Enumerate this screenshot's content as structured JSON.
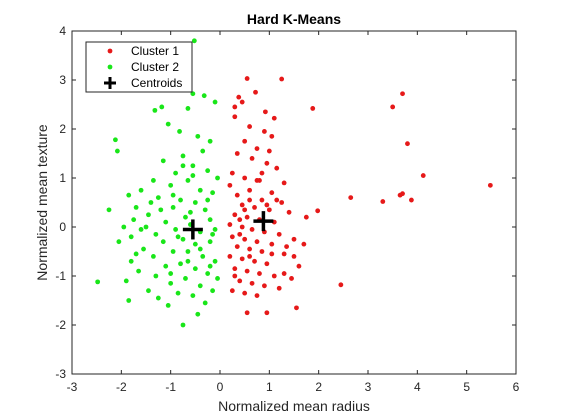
{
  "chart_data": {
    "type": "scatter",
    "title": "Hard K-Means",
    "xlabel": "Normalized mean radius",
    "ylabel": "Normalized mean texture",
    "xlim": [
      -3,
      6
    ],
    "ylim": [
      -3,
      4
    ],
    "xticks": [
      "-3",
      "-2",
      "-1",
      "0",
      "1",
      "2",
      "3",
      "4",
      "5",
      "6"
    ],
    "yticks": [
      "-3",
      "-2",
      "-1",
      "0",
      "1",
      "2",
      "3",
      "4"
    ],
    "grid": false,
    "legend_position": "top-left",
    "series": [
      {
        "name": "Cluster 1",
        "color": "#e61919",
        "marker": "dot",
        "points": [
          [
            0.38,
            2.65
          ],
          [
            0.55,
            3.03
          ],
          [
            1.25,
            3.02
          ],
          [
            0.72,
            2.75
          ],
          [
            0.45,
            2.55
          ],
          [
            0.92,
            2.35
          ],
          [
            1.1,
            2.22
          ],
          [
            1.88,
            2.42
          ],
          [
            0.3,
            2.25
          ],
          [
            0.6,
            2.05
          ],
          [
            0.9,
            1.95
          ],
          [
            1.05,
            1.85
          ],
          [
            0.5,
            1.75
          ],
          [
            0.75,
            1.6
          ],
          [
            0.35,
            1.5
          ],
          [
            0.65,
            1.4
          ],
          [
            0.95,
            1.3
          ],
          [
            1.15,
            1.2
          ],
          [
            0.25,
            1.1
          ],
          [
            0.5,
            1.0
          ],
          [
            0.8,
            0.95
          ],
          [
            1.3,
            0.9
          ],
          [
            0.2,
            0.85
          ],
          [
            0.6,
            0.75
          ],
          [
            1.05,
            0.7
          ],
          [
            0.35,
            0.65
          ],
          [
            0.85,
            0.55
          ],
          [
            1.25,
            0.5
          ],
          [
            0.45,
            0.45
          ],
          [
            0.7,
            0.4
          ],
          [
            1.0,
            0.35
          ],
          [
            1.4,
            0.3
          ],
          [
            1.75,
            0.2
          ],
          [
            1.98,
            0.33
          ],
          [
            0.3,
            0.25
          ],
          [
            0.55,
            0.2
          ],
          [
            0.8,
            0.15
          ],
          [
            1.1,
            0.1
          ],
          [
            0.2,
            0.05
          ],
          [
            0.45,
            0.0
          ],
          [
            0.65,
            -0.05
          ],
          [
            0.9,
            -0.1
          ],
          [
            1.2,
            -0.15
          ],
          [
            1.5,
            -0.25
          ],
          [
            0.25,
            -0.2
          ],
          [
            0.5,
            -0.25
          ],
          [
            0.75,
            -0.3
          ],
          [
            1.05,
            -0.35
          ],
          [
            0.35,
            -0.4
          ],
          [
            0.6,
            -0.45
          ],
          [
            0.85,
            -0.5
          ],
          [
            1.3,
            -0.55
          ],
          [
            0.2,
            -0.6
          ],
          [
            0.45,
            -0.65
          ],
          [
            0.7,
            -0.7
          ],
          [
            0.95,
            -0.75
          ],
          [
            1.6,
            -0.8
          ],
          [
            0.3,
            -0.85
          ],
          [
            0.55,
            -0.9
          ],
          [
            0.8,
            -0.95
          ],
          [
            1.1,
            -1.0
          ],
          [
            1.45,
            -1.05
          ],
          [
            0.4,
            -1.1
          ],
          [
            0.65,
            -1.15
          ],
          [
            0.9,
            -1.2
          ],
          [
            1.2,
            -1.25
          ],
          [
            0.25,
            -1.3
          ],
          [
            0.5,
            -1.35
          ],
          [
            0.75,
            -1.4
          ],
          [
            1.55,
            -1.65
          ],
          [
            2.45,
            -1.18
          ],
          [
            0.55,
            -1.75
          ],
          [
            0.95,
            -1.75
          ],
          [
            1.5,
            -0.6
          ],
          [
            1.3,
            -0.95
          ],
          [
            0.4,
            0.15
          ],
          [
            0.6,
            0.55
          ],
          [
            1.35,
            -0.4
          ],
          [
            0.75,
            0.95
          ],
          [
            0.4,
            -0.15
          ],
          [
            1.15,
            0.55
          ],
          [
            0.3,
            -1.0
          ],
          [
            1.7,
            -0.35
          ],
          [
            0.85,
            1.1
          ],
          [
            2.65,
            0.6
          ],
          [
            3.3,
            0.52
          ],
          [
            3.65,
            0.65
          ],
          [
            3.7,
            0.68
          ],
          [
            4.12,
            1.05
          ],
          [
            3.8,
            1.7
          ],
          [
            3.5,
            2.45
          ],
          [
            3.7,
            2.72
          ],
          [
            3.88,
            0.55
          ],
          [
            5.48,
            0.85
          ],
          [
            0.3,
            2.45
          ],
          [
            1.0,
            1.55
          ],
          [
            0.6,
            -0.6
          ],
          [
            0.95,
            0.45
          ],
          [
            0.5,
            0.35
          ],
          [
            1.05,
            -0.55
          ]
        ]
      },
      {
        "name": "Cluster 2",
        "color": "#19e619",
        "marker": "dot",
        "points": [
          [
            -0.52,
            3.8
          ],
          [
            -0.55,
            2.72
          ],
          [
            -0.32,
            2.68
          ],
          [
            -1.18,
            2.45
          ],
          [
            -1.32,
            2.38
          ],
          [
            -0.65,
            2.42
          ],
          [
            -0.1,
            2.55
          ],
          [
            -2.12,
            1.78
          ],
          [
            -2.08,
            1.55
          ],
          [
            -1.05,
            2.1
          ],
          [
            -0.82,
            1.95
          ],
          [
            -0.45,
            1.85
          ],
          [
            -0.2,
            1.75
          ],
          [
            -0.35,
            1.55
          ],
          [
            -0.75,
            1.45
          ],
          [
            -1.15,
            1.35
          ],
          [
            -0.55,
            1.25
          ],
          [
            -0.25,
            1.15
          ],
          [
            -0.9,
            1.1
          ],
          [
            -1.35,
            0.95
          ],
          [
            -0.65,
            0.95
          ],
          [
            -0.05,
            1.0
          ],
          [
            -1.85,
            0.65
          ],
          [
            -1.6,
            0.75
          ],
          [
            -1.0,
            0.85
          ],
          [
            -0.4,
            0.75
          ],
          [
            -0.15,
            0.7
          ],
          [
            -1.25,
            0.6
          ],
          [
            -0.8,
            0.55
          ],
          [
            -2.25,
            0.35
          ],
          [
            -1.7,
            0.4
          ],
          [
            -0.5,
            0.5
          ],
          [
            -0.95,
            0.4
          ],
          [
            -0.3,
            0.35
          ],
          [
            -1.45,
            0.25
          ],
          [
            -1.75,
            0.15
          ],
          [
            -0.7,
            0.2
          ],
          [
            -0.2,
            0.15
          ],
          [
            -1.1,
            0.1
          ],
          [
            -1.6,
            -0.05
          ],
          [
            -0.6,
            0.05
          ],
          [
            -0.9,
            -0.05
          ],
          [
            -1.3,
            -0.15
          ],
          [
            -0.4,
            -0.1
          ],
          [
            -0.1,
            -0.05
          ],
          [
            -2.05,
            -0.3
          ],
          [
            -1.8,
            -0.2
          ],
          [
            -0.75,
            -0.25
          ],
          [
            -1.15,
            -0.3
          ],
          [
            -0.5,
            -0.35
          ],
          [
            -0.2,
            -0.3
          ],
          [
            -1.55,
            -0.45
          ],
          [
            -0.95,
            -0.5
          ],
          [
            -0.65,
            -0.5
          ],
          [
            -1.35,
            -0.6
          ],
          [
            -0.35,
            -0.6
          ],
          [
            -1.8,
            -0.7
          ],
          [
            -0.8,
            -0.75
          ],
          [
            -0.1,
            -0.7
          ],
          [
            -1.1,
            -0.8
          ],
          [
            -0.5,
            -0.85
          ],
          [
            -1.65,
            -0.9
          ],
          [
            -0.25,
            -0.95
          ],
          [
            -1.3,
            -1.0
          ],
          [
            -0.7,
            -1.05
          ],
          [
            -0.05,
            -1.05
          ],
          [
            -1.9,
            -1.1
          ],
          [
            -1.0,
            -1.15
          ],
          [
            -0.4,
            -1.2
          ],
          [
            -1.45,
            -1.3
          ],
          [
            -0.15,
            -1.3
          ],
          [
            -0.85,
            -1.35
          ],
          [
            -1.25,
            -1.45
          ],
          [
            -0.55,
            -1.4
          ],
          [
            -1.85,
            -1.5
          ],
          [
            -0.3,
            -1.55
          ],
          [
            -0.75,
            -2.0
          ],
          [
            -0.45,
            -1.78
          ],
          [
            -2.48,
            -1.12
          ],
          [
            -1.05,
            -1.6
          ],
          [
            -0.6,
            0.3
          ],
          [
            -0.25,
            0.55
          ],
          [
            -0.85,
            -0.2
          ],
          [
            -1.2,
            0.35
          ],
          [
            -0.4,
            -0.45
          ],
          [
            -0.65,
            -0.7
          ],
          [
            -1.5,
            0.0
          ],
          [
            -0.95,
            0.65
          ],
          [
            -0.15,
            -0.15
          ],
          [
            -1.7,
            -0.55
          ],
          [
            -0.55,
            1.05
          ],
          [
            -1.4,
            0.5
          ],
          [
            -0.2,
            -0.8
          ],
          [
            -1.0,
            -0.95
          ],
          [
            -0.75,
            1.25
          ],
          [
            -1.95,
            0.0
          ]
        ]
      },
      {
        "name": "Centroids",
        "color": "#000000",
        "marker": "plus",
        "points": [
          [
            -0.55,
            -0.05
          ],
          [
            0.88,
            0.12
          ]
        ]
      }
    ]
  }
}
